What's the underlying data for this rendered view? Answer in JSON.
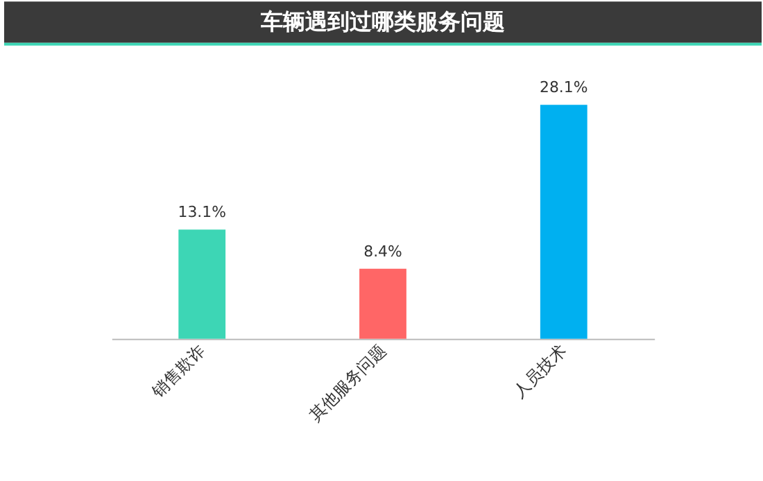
{
  "chart_data": {
    "type": "bar",
    "title": "车辆遇到过哪类服务问题",
    "categories": [
      "销售欺诈",
      "其他服务问题",
      "人员技术"
    ],
    "values": [
      13.1,
      8.4,
      28.1
    ],
    "colors": [
      "#3dd6b5",
      "#ff6666",
      "#00b0f0"
    ],
    "value_labels": [
      "13.1%",
      "8.4%",
      "28.1%"
    ]
  }
}
